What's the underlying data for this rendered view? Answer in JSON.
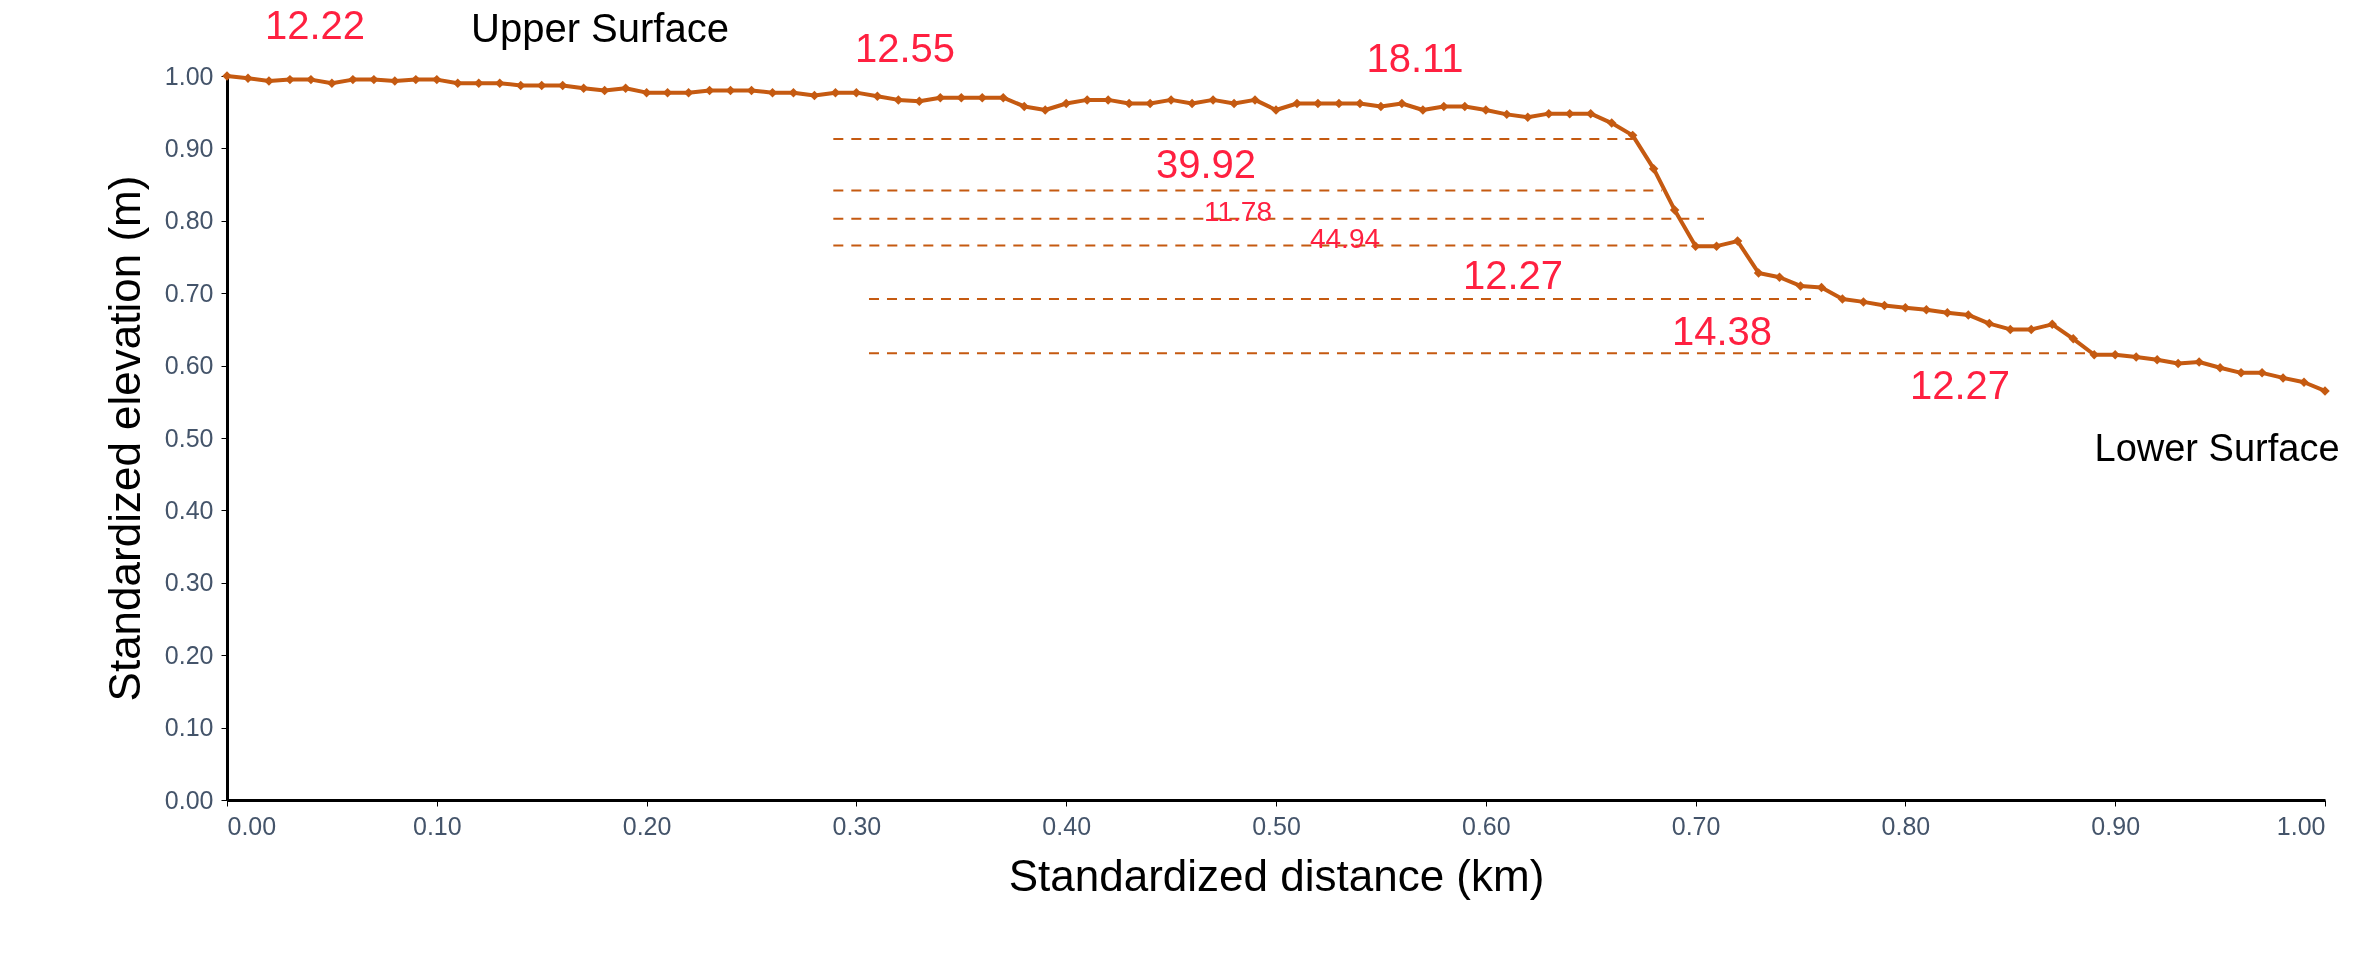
{
  "chart_data": {
    "type": "line",
    "xlabel": "Standardized distance (km)",
    "ylabel": "Standardized elevation (m)",
    "xlim": [
      0,
      1
    ],
    "ylim": [
      0,
      1
    ],
    "xticks": [
      {
        "value": 0,
        "label": "0.00"
      },
      {
        "value": 0.1,
        "label": "0.10"
      },
      {
        "value": 0.2,
        "label": "0.20"
      },
      {
        "value": 0.3,
        "label": "0.30"
      },
      {
        "value": 0.4,
        "label": "0.40"
      },
      {
        "value": 0.5,
        "label": "0.50"
      },
      {
        "value": 0.6,
        "label": "0.60"
      },
      {
        "value": 0.7,
        "label": "0.70"
      },
      {
        "value": 0.8,
        "label": "0.80"
      },
      {
        "value": 0.9,
        "label": "0.90"
      },
      {
        "value": 1,
        "label": "1.00"
      }
    ],
    "yticks": [
      {
        "value": 0,
        "label": "0.00"
      },
      {
        "value": 0.1,
        "label": "0.10"
      },
      {
        "value": 0.2,
        "label": "0.20"
      },
      {
        "value": 0.3,
        "label": "0.30"
      },
      {
        "value": 0.4,
        "label": "0.40"
      },
      {
        "value": 0.5,
        "label": "0.50"
      },
      {
        "value": 0.6,
        "label": "0.60"
      },
      {
        "value": 0.7,
        "label": "0.70"
      },
      {
        "value": 0.8,
        "label": "0.80"
      },
      {
        "value": 0.9,
        "label": "0.90"
      },
      {
        "value": 1,
        "label": "1.00"
      }
    ],
    "grid": false,
    "series": [
      {
        "color": "#c55a11",
        "marker": "diamond",
        "line_style": "solid",
        "x": [
          0,
          0.01,
          0.02,
          0.03,
          0.04,
          0.05,
          0.06,
          0.07,
          0.08,
          0.09,
          0.1,
          0.11,
          0.12,
          0.13,
          0.14,
          0.15,
          0.16,
          0.17,
          0.18,
          0.19,
          0.2,
          0.21,
          0.22,
          0.23,
          0.24,
          0.25,
          0.26,
          0.27,
          0.28,
          0.29,
          0.3,
          0.31,
          0.32,
          0.33,
          0.34,
          0.35,
          0.36,
          0.37,
          0.38,
          0.39,
          0.4,
          0.41,
          0.42,
          0.43,
          0.44,
          0.45,
          0.46,
          0.47,
          0.48,
          0.49,
          0.5,
          0.51,
          0.52,
          0.53,
          0.54,
          0.55,
          0.56,
          0.57,
          0.58,
          0.59,
          0.6,
          0.61,
          0.62,
          0.63,
          0.64,
          0.65,
          0.66,
          0.67,
          0.68,
          0.69,
          0.7,
          0.71,
          0.72,
          0.73,
          0.74,
          0.75,
          0.76,
          0.77,
          0.78,
          0.79,
          0.8,
          0.81,
          0.82,
          0.83,
          0.84,
          0.85,
          0.86,
          0.87,
          0.88,
          0.89,
          0.9,
          0.91,
          0.92,
          0.93,
          0.94,
          0.95,
          0.96,
          0.97,
          0.98,
          0.99,
          1
        ],
        "values": [
          1.0,
          0.997,
          0.993,
          0.995,
          0.995,
          0.99,
          0.995,
          0.995,
          0.993,
          0.995,
          0.995,
          0.99,
          0.99,
          0.99,
          0.987,
          0.987,
          0.987,
          0.983,
          0.98,
          0.983,
          0.977,
          0.977,
          0.977,
          0.98,
          0.98,
          0.98,
          0.977,
          0.977,
          0.973,
          0.977,
          0.977,
          0.972,
          0.967,
          0.965,
          0.97,
          0.97,
          0.97,
          0.97,
          0.958,
          0.953,
          0.962,
          0.967,
          0.967,
          0.962,
          0.962,
          0.967,
          0.962,
          0.967,
          0.962,
          0.967,
          0.953,
          0.962,
          0.962,
          0.962,
          0.962,
          0.958,
          0.962,
          0.953,
          0.958,
          0.958,
          0.953,
          0.947,
          0.943,
          0.948,
          0.948,
          0.948,
          0.935,
          0.918,
          0.872,
          0.815,
          0.765,
          0.765,
          0.772,
          0.728,
          0.722,
          0.71,
          0.708,
          0.692,
          0.688,
          0.683,
          0.68,
          0.677,
          0.673,
          0.67,
          0.658,
          0.65,
          0.65,
          0.657,
          0.637,
          0.615,
          0.615,
          0.612,
          0.608,
          0.603,
          0.605,
          0.597,
          0.59,
          0.59,
          0.583,
          0.577,
          0.565
        ]
      },
      {
        "color": "#c55a11",
        "marker": "none",
        "line_style": "dashed",
        "x": [
          0.289,
          0.67
        ],
        "values": [
          0.913,
          0.913
        ]
      },
      {
        "color": "#c55a11",
        "marker": "none",
        "line_style": "dashed",
        "x": [
          0.289,
          0.684
        ],
        "values": [
          0.842,
          0.842
        ]
      },
      {
        "color": "#c55a11",
        "marker": "none",
        "line_style": "dashed",
        "x": [
          0.289,
          0.704
        ],
        "values": [
          0.803,
          0.803
        ]
      },
      {
        "color": "#c55a11",
        "marker": "none",
        "line_style": "dashed",
        "x": [
          0.289,
          0.696
        ],
        "values": [
          0.766,
          0.766
        ]
      },
      {
        "color": "#c55a11",
        "marker": "none",
        "line_style": "dashed",
        "x": [
          0.306,
          0.755
        ],
        "values": [
          0.692,
          0.692
        ]
      },
      {
        "color": "#c55a11",
        "marker": "none",
        "line_style": "dashed",
        "x": [
          0.306,
          0.886
        ],
        "values": [
          0.617,
          0.617
        ]
      }
    ],
    "annotations": [
      "12.22",
      "Upper Surface",
      "12.55",
      "18.11",
      "39.92",
      "11.78",
      "44.94",
      "12.27",
      "14.38",
      "12.27",
      "Lower Surface"
    ]
  }
}
